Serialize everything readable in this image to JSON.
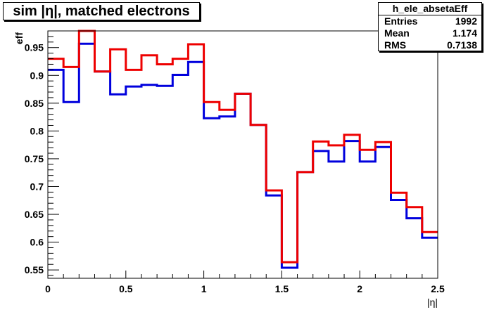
{
  "canvas": {
    "title": "sim |η|, matched electrons",
    "stats": {
      "name": "h_ele_absetaEff",
      "rows": [
        {
          "label": "Entries",
          "value": "1992"
        },
        {
          "label": "Mean",
          "value": "1.174"
        },
        {
          "label": "RMS",
          "value": "0.7138"
        }
      ]
    }
  },
  "colors": {
    "blue_series": "#0000dd",
    "red_series": "#ee0000",
    "frame": "#000000",
    "background": "#ffffff"
  },
  "chart_data": {
    "type": "line",
    "title": "sim |η|, matched electrons",
    "xlabel": "|η|",
    "ylabel": "eff",
    "xlim": [
      0,
      2.5
    ],
    "ylim": [
      0.535,
      0.98
    ],
    "x_ticks": [
      0,
      0.5,
      1,
      1.5,
      2,
      2.5
    ],
    "x_tick_labels": [
      "0",
      "0.5",
      "1",
      "1.5",
      "2",
      "2.5"
    ],
    "y_ticks": [
      0.55,
      0.6,
      0.65,
      0.7,
      0.75,
      0.8,
      0.85,
      0.9,
      0.95
    ],
    "y_tick_labels": [
      "0.55",
      "0.6",
      "0.65",
      "0.7",
      "0.75",
      "0.8",
      "0.85",
      "0.9",
      "0.95"
    ],
    "grid": false,
    "x_bin_edges": [
      0,
      0.1,
      0.2,
      0.3,
      0.4,
      0.5,
      0.6,
      0.7,
      0.8,
      0.9,
      1.0,
      1.1,
      1.2,
      1.3,
      1.4,
      1.5,
      1.6,
      1.7,
      1.8,
      1.9,
      2.0,
      2.1,
      2.2,
      2.3,
      2.4,
      2.5
    ],
    "series": [
      {
        "color": "#0000dd",
        "values": [
          0.91,
          0.852,
          0.957,
          0.907,
          0.866,
          0.88,
          0.883,
          0.881,
          0.901,
          0.924,
          0.823,
          0.826,
          0.867,
          0.811,
          0.684,
          0.554,
          0.726,
          0.764,
          0.745,
          0.782,
          0.745,
          0.771,
          0.676,
          0.643,
          0.608
        ]
      },
      {
        "color": "#ee0000",
        "values": [
          0.93,
          0.915,
          0.98,
          0.907,
          0.947,
          0.91,
          0.936,
          0.92,
          0.93,
          0.956,
          0.852,
          0.838,
          0.867,
          0.811,
          0.693,
          0.564,
          0.726,
          0.781,
          0.774,
          0.793,
          0.766,
          0.78,
          0.689,
          0.663,
          0.618
        ]
      }
    ]
  }
}
